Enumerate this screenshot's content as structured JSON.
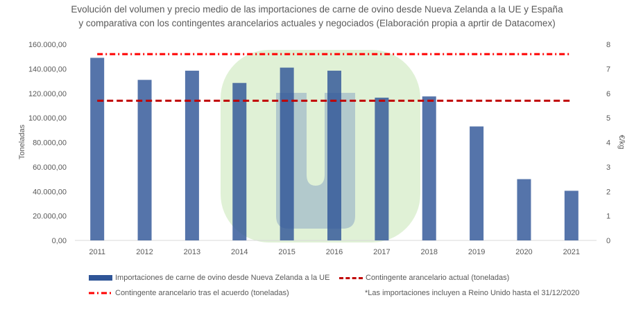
{
  "chart_data": {
    "type": "bar",
    "title_line1": "Evolución del volumen y precio medio de las importaciones de carne de ovino desde Nueva Zelanda a la UE y España",
    "title_line2": "y comparativa con los contingentes arancelarios actuales y negociados (Elaboración propia a aprtir de Datacomex)",
    "categories": [
      "2011",
      "2012",
      "2013",
      "2014",
      "2015",
      "2016",
      "2017",
      "2018",
      "2019",
      "2020",
      "2021"
    ],
    "series": [
      {
        "name": "Importaciones de carne de ovino desde Nueva Zelanda a la UE",
        "type": "bar",
        "color": "#2F5597",
        "values": [
          149000,
          131000,
          138500,
          128500,
          141000,
          138500,
          116500,
          117500,
          93000,
          50000,
          40500
        ]
      },
      {
        "name": "Contingente arancelario actual (toneladas)",
        "type": "line",
        "style": "dashed",
        "color": "#C00000",
        "values": [
          114000,
          114000,
          114000,
          114000,
          114000,
          114000,
          114000,
          114000,
          114000,
          114000,
          114000
        ]
      },
      {
        "name": "Contingente arancelario tras el acuerdo (toneladas)",
        "type": "line",
        "style": "dash-dot",
        "color": "#FF0000",
        "values": [
          152000,
          152000,
          152000,
          152000,
          152000,
          152000,
          152000,
          152000,
          152000,
          152000,
          152000
        ]
      }
    ],
    "ylabel": "Toneladas",
    "ylim": [
      0,
      160000
    ],
    "yticks": [
      "0,00",
      "20.000,00",
      "40.000,00",
      "60.000,00",
      "80.000,00",
      "100.000,00",
      "120.000,00",
      "140.000,00",
      "160.000,00"
    ],
    "y2label": "€/kg",
    "y2lim": [
      0,
      8
    ],
    "y2ticks": [
      "0",
      "1",
      "2",
      "3",
      "4",
      "5",
      "6",
      "7",
      "8"
    ],
    "grid": false,
    "legend_placement": "bottom",
    "note": "*Las importaciones incluyen a Reino Unido hasta el 31/12/2020"
  },
  "watermark": {
    "shape": "rounded-square",
    "fill": "#DDEFD2",
    "inner_color": "#8CA7C5"
  }
}
